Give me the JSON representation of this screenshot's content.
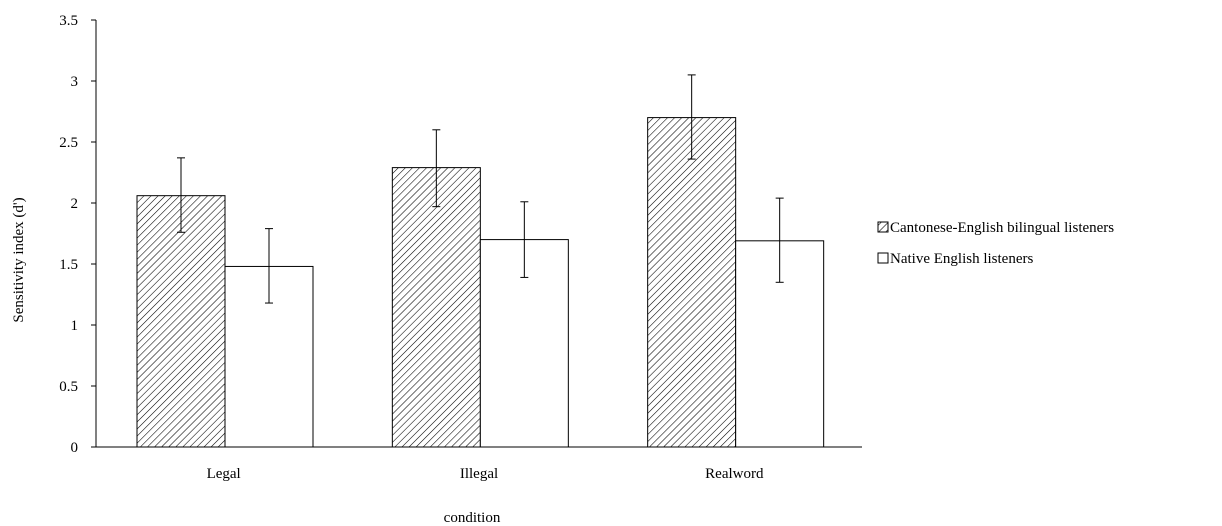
{
  "chart_data": {
    "type": "bar",
    "categories": [
      "Legal",
      "Illegal",
      "Realword"
    ],
    "series": [
      {
        "name": "Cantonese-English bilingual listeners",
        "values": [
          2.06,
          2.29,
          2.7
        ],
        "error_low": [
          1.76,
          1.97,
          2.36
        ],
        "error_high": [
          2.37,
          2.6,
          3.05
        ],
        "pattern": "hatched"
      },
      {
        "name": "Native English listeners",
        "values": [
          1.48,
          1.7,
          1.69
        ],
        "error_low": [
          1.18,
          1.39,
          1.35
        ],
        "error_high": [
          1.79,
          2.01,
          2.04
        ],
        "pattern": "solid-white"
      }
    ],
    "xlabel": "condition",
    "ylabel": "Sensitivity index (d')",
    "ylim": [
      0,
      3.5
    ],
    "yticks": [
      "0",
      "0.5",
      "1",
      "1.5",
      "2",
      "2.5",
      "3",
      "3.5"
    ],
    "grid": false,
    "legend_position": "right"
  }
}
